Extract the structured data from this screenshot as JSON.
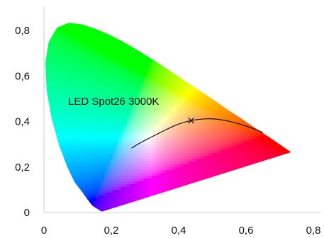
{
  "chart_data": {
    "type": "scatter",
    "title": "",
    "xlabel": "",
    "ylabel": "",
    "xlim": [
      0,
      0.8
    ],
    "ylim": [
      0,
      0.86
    ],
    "x_ticks": [
      {
        "value": 0,
        "label": "0"
      },
      {
        "value": 0.2,
        "label": "0,2"
      },
      {
        "value": 0.4,
        "label": "0,4"
      },
      {
        "value": 0.6,
        "label": "0,6"
      },
      {
        "value": 0.8,
        "label": "0,8"
      }
    ],
    "y_ticks": [
      {
        "value": 0,
        "label": "0"
      },
      {
        "value": 0.2,
        "label": "0,2"
      },
      {
        "value": 0.4,
        "label": "0,4"
      },
      {
        "value": 0.6,
        "label": "0,6"
      },
      {
        "value": 0.8,
        "label": "0,8"
      }
    ],
    "grid": false,
    "gamut_boundary": [
      [
        0.175,
        0.005
      ],
      [
        0.172,
        0.005
      ],
      [
        0.17,
        0.005
      ],
      [
        0.166,
        0.009
      ],
      [
        0.161,
        0.014
      ],
      [
        0.151,
        0.023
      ],
      [
        0.144,
        0.03
      ],
      [
        0.132,
        0.052
      ],
      [
        0.114,
        0.089
      ],
      [
        0.091,
        0.133
      ],
      [
        0.069,
        0.201
      ],
      [
        0.045,
        0.295
      ],
      [
        0.023,
        0.413
      ],
      [
        0.008,
        0.538
      ],
      [
        0.004,
        0.655
      ],
      [
        0.014,
        0.75
      ],
      [
        0.039,
        0.812
      ],
      [
        0.074,
        0.834
      ],
      [
        0.115,
        0.826
      ],
      [
        0.155,
        0.806
      ],
      [
        0.193,
        0.782
      ],
      [
        0.23,
        0.754
      ],
      [
        0.266,
        0.724
      ],
      [
        0.302,
        0.692
      ],
      [
        0.337,
        0.659
      ],
      [
        0.373,
        0.624
      ],
      [
        0.408,
        0.589
      ],
      [
        0.444,
        0.554
      ],
      [
        0.479,
        0.52
      ],
      [
        0.512,
        0.487
      ],
      [
        0.544,
        0.454
      ],
      [
        0.575,
        0.424
      ],
      [
        0.602,
        0.397
      ],
      [
        0.627,
        0.372
      ],
      [
        0.648,
        0.351
      ],
      [
        0.666,
        0.334
      ],
      [
        0.68,
        0.32
      ],
      [
        0.692,
        0.308
      ],
      [
        0.734,
        0.265
      ]
    ],
    "planckian_locus": [
      [
        0.26,
        0.283
      ],
      [
        0.29,
        0.31
      ],
      [
        0.33,
        0.34
      ],
      [
        0.37,
        0.37
      ],
      [
        0.41,
        0.395
      ],
      [
        0.437,
        0.404
      ],
      [
        0.46,
        0.41
      ],
      [
        0.5,
        0.413
      ],
      [
        0.54,
        0.405
      ],
      [
        0.58,
        0.39
      ],
      [
        0.62,
        0.37
      ],
      [
        0.65,
        0.352
      ]
    ],
    "points": [
      {
        "x": 0.437,
        "y": 0.404,
        "label": "LED Spot26 3000K",
        "marker": "x"
      }
    ],
    "white_point": [
      0.333,
      0.333
    ]
  }
}
